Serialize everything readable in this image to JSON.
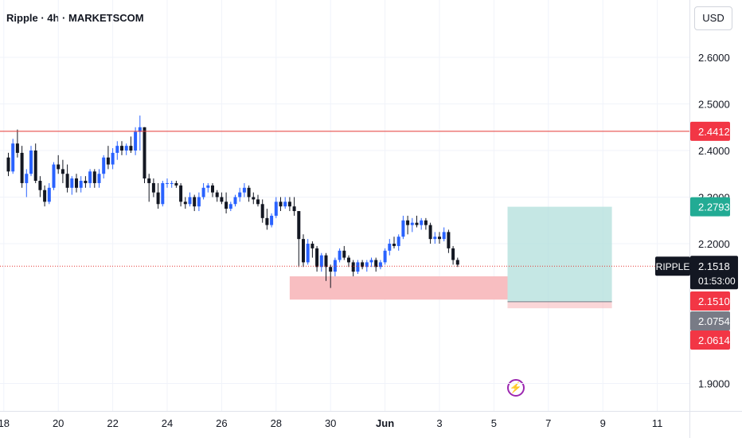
{
  "header": {
    "title": "Ripple · 4h · MARKETSCOM",
    "currency": "USD"
  },
  "event_icon": "lightning-bolt-icon",
  "colors": {
    "up": "#2962ff",
    "down": "#131722",
    "resistance": "#e53935",
    "profit_zone": "#b2dfdb",
    "loss_zone": "#f8bbbe",
    "label_red": "#f23645",
    "label_green": "#22ab94",
    "label_gray": "#787b86",
    "label_black": "#131722"
  },
  "chart_data": {
    "type": "candlestick",
    "title": "Ripple · 4h · MARKETSCOM",
    "xlabel": "",
    "ylabel": "",
    "ylim": [
      1.86,
      2.66
    ],
    "y_ticks": [
      "2.6000",
      "2.5000",
      "2.4000",
      "2.3000",
      "2.2000",
      "1.9000"
    ],
    "x_ticks": [
      "18",
      "20",
      "22",
      "24",
      "26",
      "28",
      "30",
      "Jun",
      "3",
      "5",
      "7",
      "9",
      "11"
    ],
    "grid": true,
    "candles": [
      [
        2.385,
        2.395,
        2.345,
        2.355
      ],
      [
        2.355,
        2.425,
        2.35,
        2.415
      ],
      [
        2.415,
        2.445,
        2.385,
        2.395
      ],
      [
        2.395,
        2.41,
        2.32,
        2.33
      ],
      [
        2.33,
        2.36,
        2.3,
        2.35
      ],
      [
        2.35,
        2.41,
        2.345,
        2.4
      ],
      [
        2.4,
        2.415,
        2.33,
        2.335
      ],
      [
        2.335,
        2.345,
        2.3,
        2.315
      ],
      [
        2.315,
        2.325,
        2.28,
        2.29
      ],
      [
        2.29,
        2.33,
        2.285,
        2.32
      ],
      [
        2.32,
        2.375,
        2.315,
        2.37
      ],
      [
        2.37,
        2.39,
        2.35,
        2.36
      ],
      [
        2.36,
        2.38,
        2.33,
        2.35
      ],
      [
        2.35,
        2.37,
        2.31,
        2.32
      ],
      [
        2.32,
        2.345,
        2.305,
        2.34
      ],
      [
        2.34,
        2.35,
        2.31,
        2.32
      ],
      [
        2.32,
        2.345,
        2.31,
        2.335
      ],
      [
        2.335,
        2.345,
        2.32,
        2.33
      ],
      [
        2.33,
        2.36,
        2.32,
        2.355
      ],
      [
        2.355,
        2.36,
        2.32,
        2.33
      ],
      [
        2.33,
        2.36,
        2.32,
        2.35
      ],
      [
        2.35,
        2.39,
        2.34,
        2.385
      ],
      [
        2.385,
        2.41,
        2.36,
        2.37
      ],
      [
        2.37,
        2.405,
        2.36,
        2.395
      ],
      [
        2.395,
        2.42,
        2.38,
        2.41
      ],
      [
        2.41,
        2.42,
        2.39,
        2.4
      ],
      [
        2.4,
        2.415,
        2.39,
        2.41
      ],
      [
        2.41,
        2.43,
        2.395,
        2.4
      ],
      [
        2.4,
        2.45,
        2.39,
        2.44
      ],
      [
        2.44,
        2.475,
        2.4,
        2.45
      ],
      [
        2.45,
        2.45,
        2.33,
        2.34
      ],
      [
        2.34,
        2.35,
        2.29,
        2.33
      ],
      [
        2.33,
        2.34,
        2.3,
        2.31
      ],
      [
        2.31,
        2.33,
        2.275,
        2.285
      ],
      [
        2.285,
        2.335,
        2.28,
        2.33
      ],
      [
        2.33,
        2.34,
        2.32,
        2.33
      ],
      [
        2.33,
        2.335,
        2.32,
        2.33
      ],
      [
        2.33,
        2.335,
        2.32,
        2.325
      ],
      [
        2.325,
        2.33,
        2.28,
        2.29
      ],
      [
        2.29,
        2.3,
        2.275,
        2.285
      ],
      [
        2.285,
        2.31,
        2.28,
        2.3
      ],
      [
        2.3,
        2.305,
        2.27,
        2.28
      ],
      [
        2.28,
        2.31,
        2.27,
        2.3
      ],
      [
        2.3,
        2.33,
        2.295,
        2.32
      ],
      [
        2.32,
        2.33,
        2.31,
        2.325
      ],
      [
        2.325,
        2.33,
        2.3,
        2.31
      ],
      [
        2.31,
        2.315,
        2.29,
        2.3
      ],
      [
        2.3,
        2.31,
        2.285,
        2.29
      ],
      [
        2.29,
        2.31,
        2.265,
        2.275
      ],
      [
        2.275,
        2.29,
        2.27,
        2.285
      ],
      [
        2.285,
        2.305,
        2.28,
        2.3
      ],
      [
        2.3,
        2.32,
        2.29,
        2.31
      ],
      [
        2.31,
        2.33,
        2.3,
        2.32
      ],
      [
        2.32,
        2.325,
        2.29,
        2.3
      ],
      [
        2.3,
        2.31,
        2.285,
        2.295
      ],
      [
        2.295,
        2.305,
        2.28,
        2.285
      ],
      [
        2.285,
        2.295,
        2.245,
        2.255
      ],
      [
        2.255,
        2.275,
        2.23,
        2.24
      ],
      [
        2.24,
        2.265,
        2.235,
        2.26
      ],
      [
        2.26,
        2.3,
        2.255,
        2.29
      ],
      [
        2.29,
        2.3,
        2.27,
        2.28
      ],
      [
        2.28,
        2.3,
        2.275,
        2.29
      ],
      [
        2.29,
        2.3,
        2.27,
        2.28
      ],
      [
        2.28,
        2.3,
        2.26,
        2.27
      ],
      [
        2.27,
        2.27,
        2.15,
        2.21
      ],
      [
        2.21,
        2.22,
        2.15,
        2.16
      ],
      [
        2.16,
        2.21,
        2.155,
        2.2
      ],
      [
        2.2,
        2.205,
        2.17,
        2.19
      ],
      [
        2.19,
        2.195,
        2.14,
        2.15
      ],
      [
        2.15,
        2.18,
        2.14,
        2.175
      ],
      [
        2.175,
        2.18,
        2.12,
        2.15
      ],
      [
        2.15,
        2.155,
        2.105,
        2.14
      ],
      [
        2.14,
        2.17,
        2.13,
        2.165
      ],
      [
        2.165,
        2.19,
        2.16,
        2.185
      ],
      [
        2.185,
        2.195,
        2.165,
        2.17
      ],
      [
        2.17,
        2.175,
        2.15,
        2.16
      ],
      [
        2.16,
        2.165,
        2.13,
        2.14
      ],
      [
        2.14,
        2.165,
        2.135,
        2.16
      ],
      [
        2.16,
        2.165,
        2.145,
        2.15
      ],
      [
        2.15,
        2.165,
        2.14,
        2.16
      ],
      [
        2.16,
        2.17,
        2.15,
        2.165
      ],
      [
        2.165,
        2.17,
        2.14,
        2.15
      ],
      [
        2.15,
        2.165,
        2.145,
        2.16
      ],
      [
        2.16,
        2.19,
        2.155,
        2.185
      ],
      [
        2.185,
        2.21,
        2.175,
        2.2
      ],
      [
        2.2,
        2.215,
        2.19,
        2.195
      ],
      [
        2.195,
        2.22,
        2.185,
        2.215
      ],
      [
        2.215,
        2.26,
        2.21,
        2.25
      ],
      [
        2.25,
        2.26,
        2.22,
        2.24
      ],
      [
        2.24,
        2.255,
        2.225,
        2.245
      ],
      [
        2.245,
        2.26,
        2.235,
        2.24
      ],
      [
        2.24,
        2.255,
        2.23,
        2.25
      ],
      [
        2.25,
        2.255,
        2.23,
        2.24
      ],
      [
        2.24,
        2.245,
        2.2,
        2.21
      ],
      [
        2.21,
        2.225,
        2.2,
        2.215
      ],
      [
        2.215,
        2.225,
        2.2,
        2.21
      ],
      [
        2.21,
        2.235,
        2.205,
        2.225
      ],
      [
        2.225,
        2.23,
        2.18,
        2.19
      ],
      [
        2.19,
        2.195,
        2.155,
        2.165
      ],
      [
        2.165,
        2.17,
        2.15,
        2.155
      ]
    ],
    "last_index": 99,
    "x_ticks_index": [
      -1,
      11,
      23,
      35,
      47,
      59,
      71,
      83,
      95,
      107,
      119,
      131,
      143
    ],
    "resistance": 2.4412,
    "current_price": 2.1518,
    "countdown": "01:53:00",
    "symbol": "RIPPLE",
    "demand_zone": {
      "from_index": 62,
      "to_index": 110,
      "low": 2.08,
      "high": 2.13
    },
    "position": {
      "from_index": 110,
      "to_index": 133,
      "entry": 2.0754,
      "target": 2.2793,
      "stop": 2.0614
    },
    "price_labels": [
      {
        "value": 2.4412,
        "text": "2.4412",
        "color": "red"
      },
      {
        "value": 2.2793,
        "text": "2.2793",
        "color": "green"
      },
      {
        "value": 2.1518,
        "text": "2.1518",
        "color": "black"
      },
      {
        "value": 2.151,
        "text": "2.1510",
        "color": "red"
      },
      {
        "value": 2.0754,
        "text": "2.0754",
        "color": "gray"
      },
      {
        "value": 2.0614,
        "text": "2.0614",
        "color": "red"
      }
    ]
  }
}
